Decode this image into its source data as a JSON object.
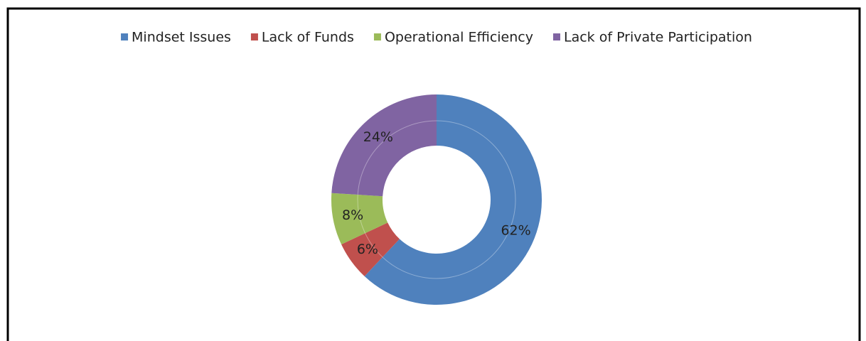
{
  "chart_data": {
    "type": "donut",
    "categories": [
      "Mindset Issues",
      "Lack of Funds",
      "Operational Efficiency",
      "Lack of Private Participation"
    ],
    "values": [
      62,
      6,
      8,
      24
    ],
    "value_labels": [
      "62%",
      "6%",
      "8%",
      "24%"
    ],
    "colors": [
      "#4f81bd",
      "#c0504d",
      "#9bbb59",
      "#8064a2"
    ],
    "legend": "top"
  }
}
